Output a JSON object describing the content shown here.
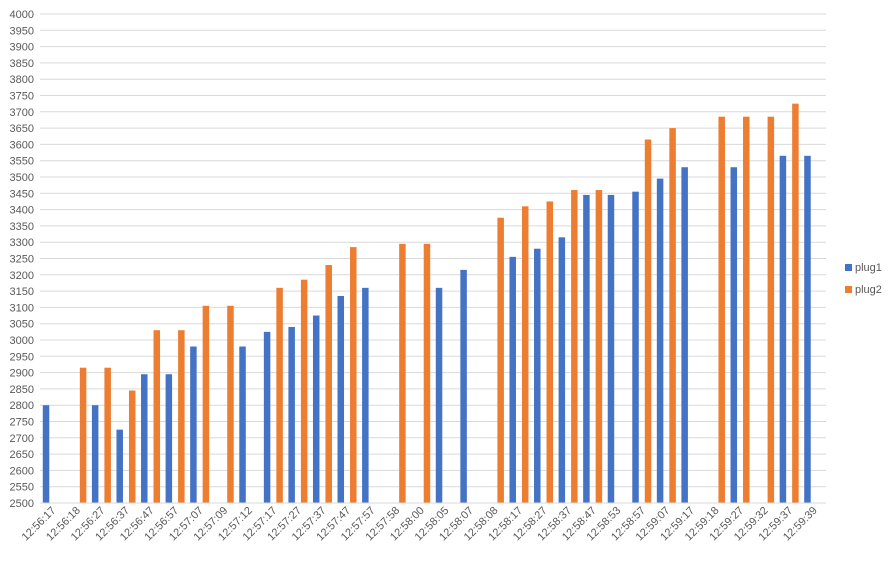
{
  "chart_data": {
    "type": "bar",
    "title": "",
    "xlabel": "",
    "ylabel": "",
    "ylim": [
      2500,
      4000
    ],
    "ytick_step": 50,
    "grid": true,
    "legend_position": "right",
    "categories": [
      "12:56:17",
      "12:56:18",
      "12:56:27",
      "12:56:37",
      "12:56:47",
      "12:56:57",
      "12:57:07",
      "12:57:09",
      "12:57:12",
      "12:57:17",
      "12:57:27",
      "12:57:37",
      "12:57:47",
      "12:57:57",
      "12:57:58",
      "12:58:00",
      "12:58:05",
      "12:58:07",
      "12:58:08",
      "12:58:17",
      "12:58:27",
      "12:58:37",
      "12:58:47",
      "12:58:53",
      "12:58:57",
      "12:59:07",
      "12:59:17",
      "12:59:18",
      "12:59:27",
      "12:59:32",
      "12:59:37",
      "12:59:39"
    ],
    "series": [
      {
        "name": "plug1",
        "color": "#4472c4",
        "values": [
          2800,
          null,
          2800,
          2725,
          2895,
          2895,
          2980,
          null,
          2980,
          3025,
          3040,
          3075,
          3135,
          3160,
          null,
          null,
          3160,
          3215,
          null,
          3255,
          3280,
          3315,
          3445,
          3445,
          3455,
          3495,
          3530,
          null,
          3530,
          null,
          3565,
          3565
        ]
      },
      {
        "name": "plug2",
        "color": "#ed7d31",
        "values": [
          null,
          2915,
          2915,
          2845,
          3030,
          3030,
          3105,
          3105,
          null,
          3160,
          3185,
          3230,
          3285,
          null,
          3295,
          3295,
          null,
          null,
          3375,
          3410,
          3425,
          3460,
          3460,
          null,
          3615,
          3650,
          null,
          3685,
          3685,
          3685,
          3725,
          null
        ]
      }
    ]
  }
}
